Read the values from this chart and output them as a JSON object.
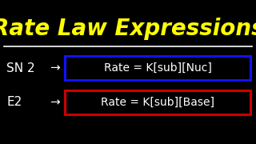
{
  "title": "Rate Law Expressions",
  "title_color": "#FFFF00",
  "bg_color": "#000000",
  "line_color": "#FFFFFF",
  "text_color": "#FFFFFF",
  "row1_label": "SN 2",
  "row2_label": "E2",
  "row1_formula": "Rate = K[sub][Nuc]",
  "row2_formula": "Rate = K[sub][Base]",
  "row1_box_color": "#1111FF",
  "row2_box_color": "#CC0000",
  "arrow": "→",
  "title_fontsize": 20,
  "label_fontsize": 11,
  "formula_fontsize": 10
}
